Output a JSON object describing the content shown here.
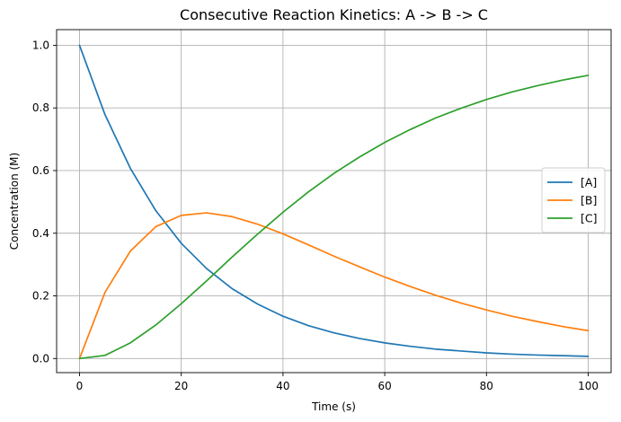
{
  "chart_data": {
    "type": "line",
    "title": "Consecutive Reaction Kinetics: A -> B -> C",
    "xlabel": "Time (s)",
    "ylabel": "Concentration (M)",
    "xlim": [
      -4.5,
      104.5
    ],
    "ylim": [
      -0.045,
      1.05
    ],
    "xticks": [
      0,
      20,
      40,
      60,
      80,
      100
    ],
    "xtick_labels": [
      "0",
      "20",
      "40",
      "60",
      "80",
      "100"
    ],
    "yticks": [
      0.0,
      0.2,
      0.4,
      0.6,
      0.8,
      1.0
    ],
    "ytick_labels": [
      "0.0",
      "0.2",
      "0.4",
      "0.6",
      "0.8",
      "1.0"
    ],
    "grid": true,
    "legend_position": "center-right",
    "x": [
      0,
      5,
      10,
      15,
      20,
      25,
      30,
      35,
      40,
      45,
      50,
      55,
      60,
      65,
      70,
      75,
      80,
      85,
      90,
      95,
      100
    ],
    "series": [
      {
        "name": "[A]",
        "color": "#1f77b4",
        "values": [
          1.0,
          0.779,
          0.607,
          0.472,
          0.368,
          0.287,
          0.223,
          0.174,
          0.135,
          0.105,
          0.082,
          0.064,
          0.05,
          0.039,
          0.03,
          0.024,
          0.018,
          0.014,
          0.011,
          0.009,
          0.007
        ]
      },
      {
        "name": "[B]",
        "color": "#ff7f0e",
        "values": [
          0.0,
          0.211,
          0.343,
          0.421,
          0.457,
          0.465,
          0.453,
          0.429,
          0.398,
          0.363,
          0.327,
          0.293,
          0.26,
          0.23,
          0.202,
          0.177,
          0.155,
          0.135,
          0.118,
          0.102,
          0.089
        ]
      },
      {
        "name": "[C]",
        "color": "#2ca02c",
        "values": [
          0.0,
          0.01,
          0.05,
          0.107,
          0.175,
          0.248,
          0.324,
          0.397,
          0.467,
          0.532,
          0.591,
          0.643,
          0.69,
          0.731,
          0.768,
          0.799,
          0.827,
          0.851,
          0.871,
          0.889,
          0.904
        ]
      }
    ]
  }
}
